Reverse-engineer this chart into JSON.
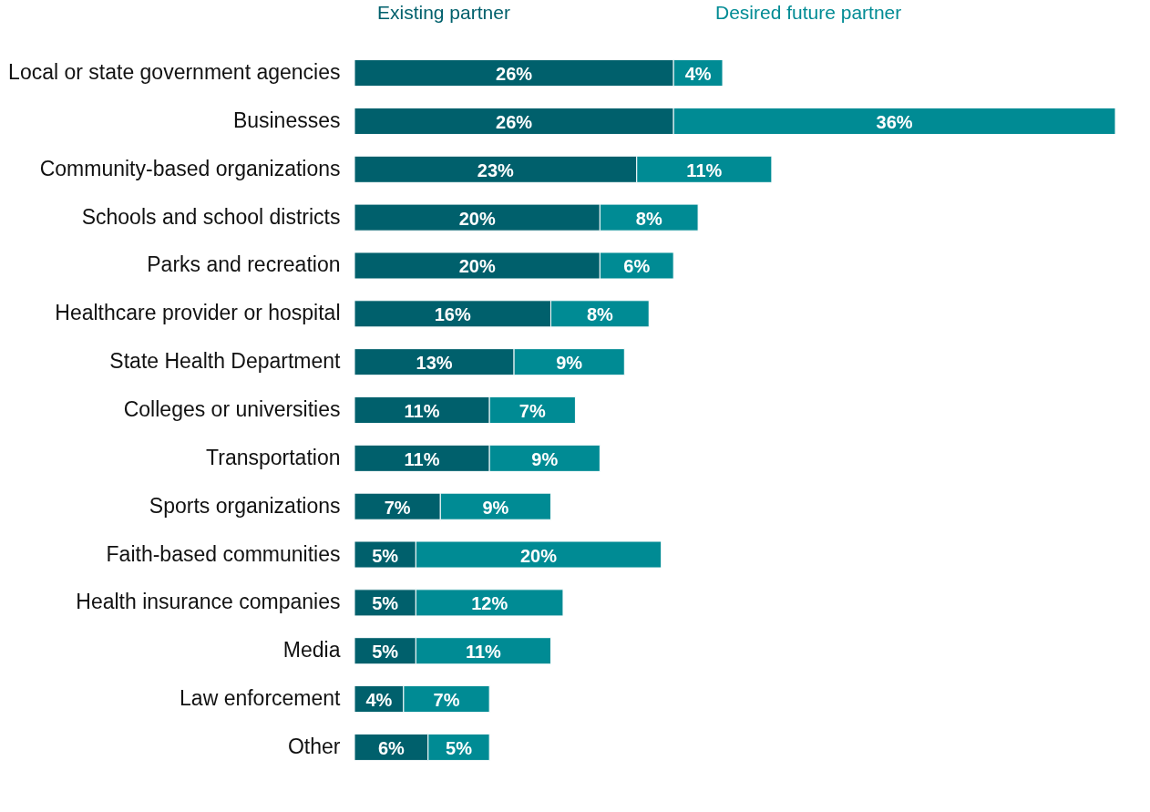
{
  "chart_data": {
    "type": "bar",
    "orientation": "horizontal",
    "stacked": true,
    "legend": "top",
    "categories": [
      "Local or state government agencies",
      "Businesses",
      "Community-based organizations",
      "Schools and school districts",
      "Parks and recreation",
      "Healthcare provider or hospital",
      "State Health Department",
      "Colleges or universities",
      "Transportation",
      "Sports organizations",
      "Faith-based communities",
      "Health insurance companies",
      "Media",
      "Law enforcement",
      "Other"
    ],
    "series": [
      {
        "name": "Existing partner",
        "color": "#00606c",
        "values": [
          26,
          26,
          23,
          20,
          20,
          16,
          13,
          11,
          11,
          7,
          5,
          5,
          5,
          4,
          6
        ],
        "value_labels": [
          "26%",
          "26%",
          "23%",
          "20%",
          "20%",
          "16%",
          "13%",
          "11%",
          "11%",
          "7%",
          "5%",
          "5%",
          "5%",
          "4%",
          "6%"
        ]
      },
      {
        "name": "Desired future partner",
        "color": "#008b94",
        "values": [
          4,
          36,
          11,
          8,
          6,
          8,
          9,
          7,
          9,
          9,
          20,
          12,
          11,
          7,
          5
        ],
        "value_labels": [
          "4%",
          "36%",
          "11%",
          "8%",
          "6%",
          "8%",
          "9%",
          "7%",
          "9%",
          "9%",
          "20%",
          "12%",
          "11%",
          "7%",
          "5%"
        ]
      }
    ]
  }
}
